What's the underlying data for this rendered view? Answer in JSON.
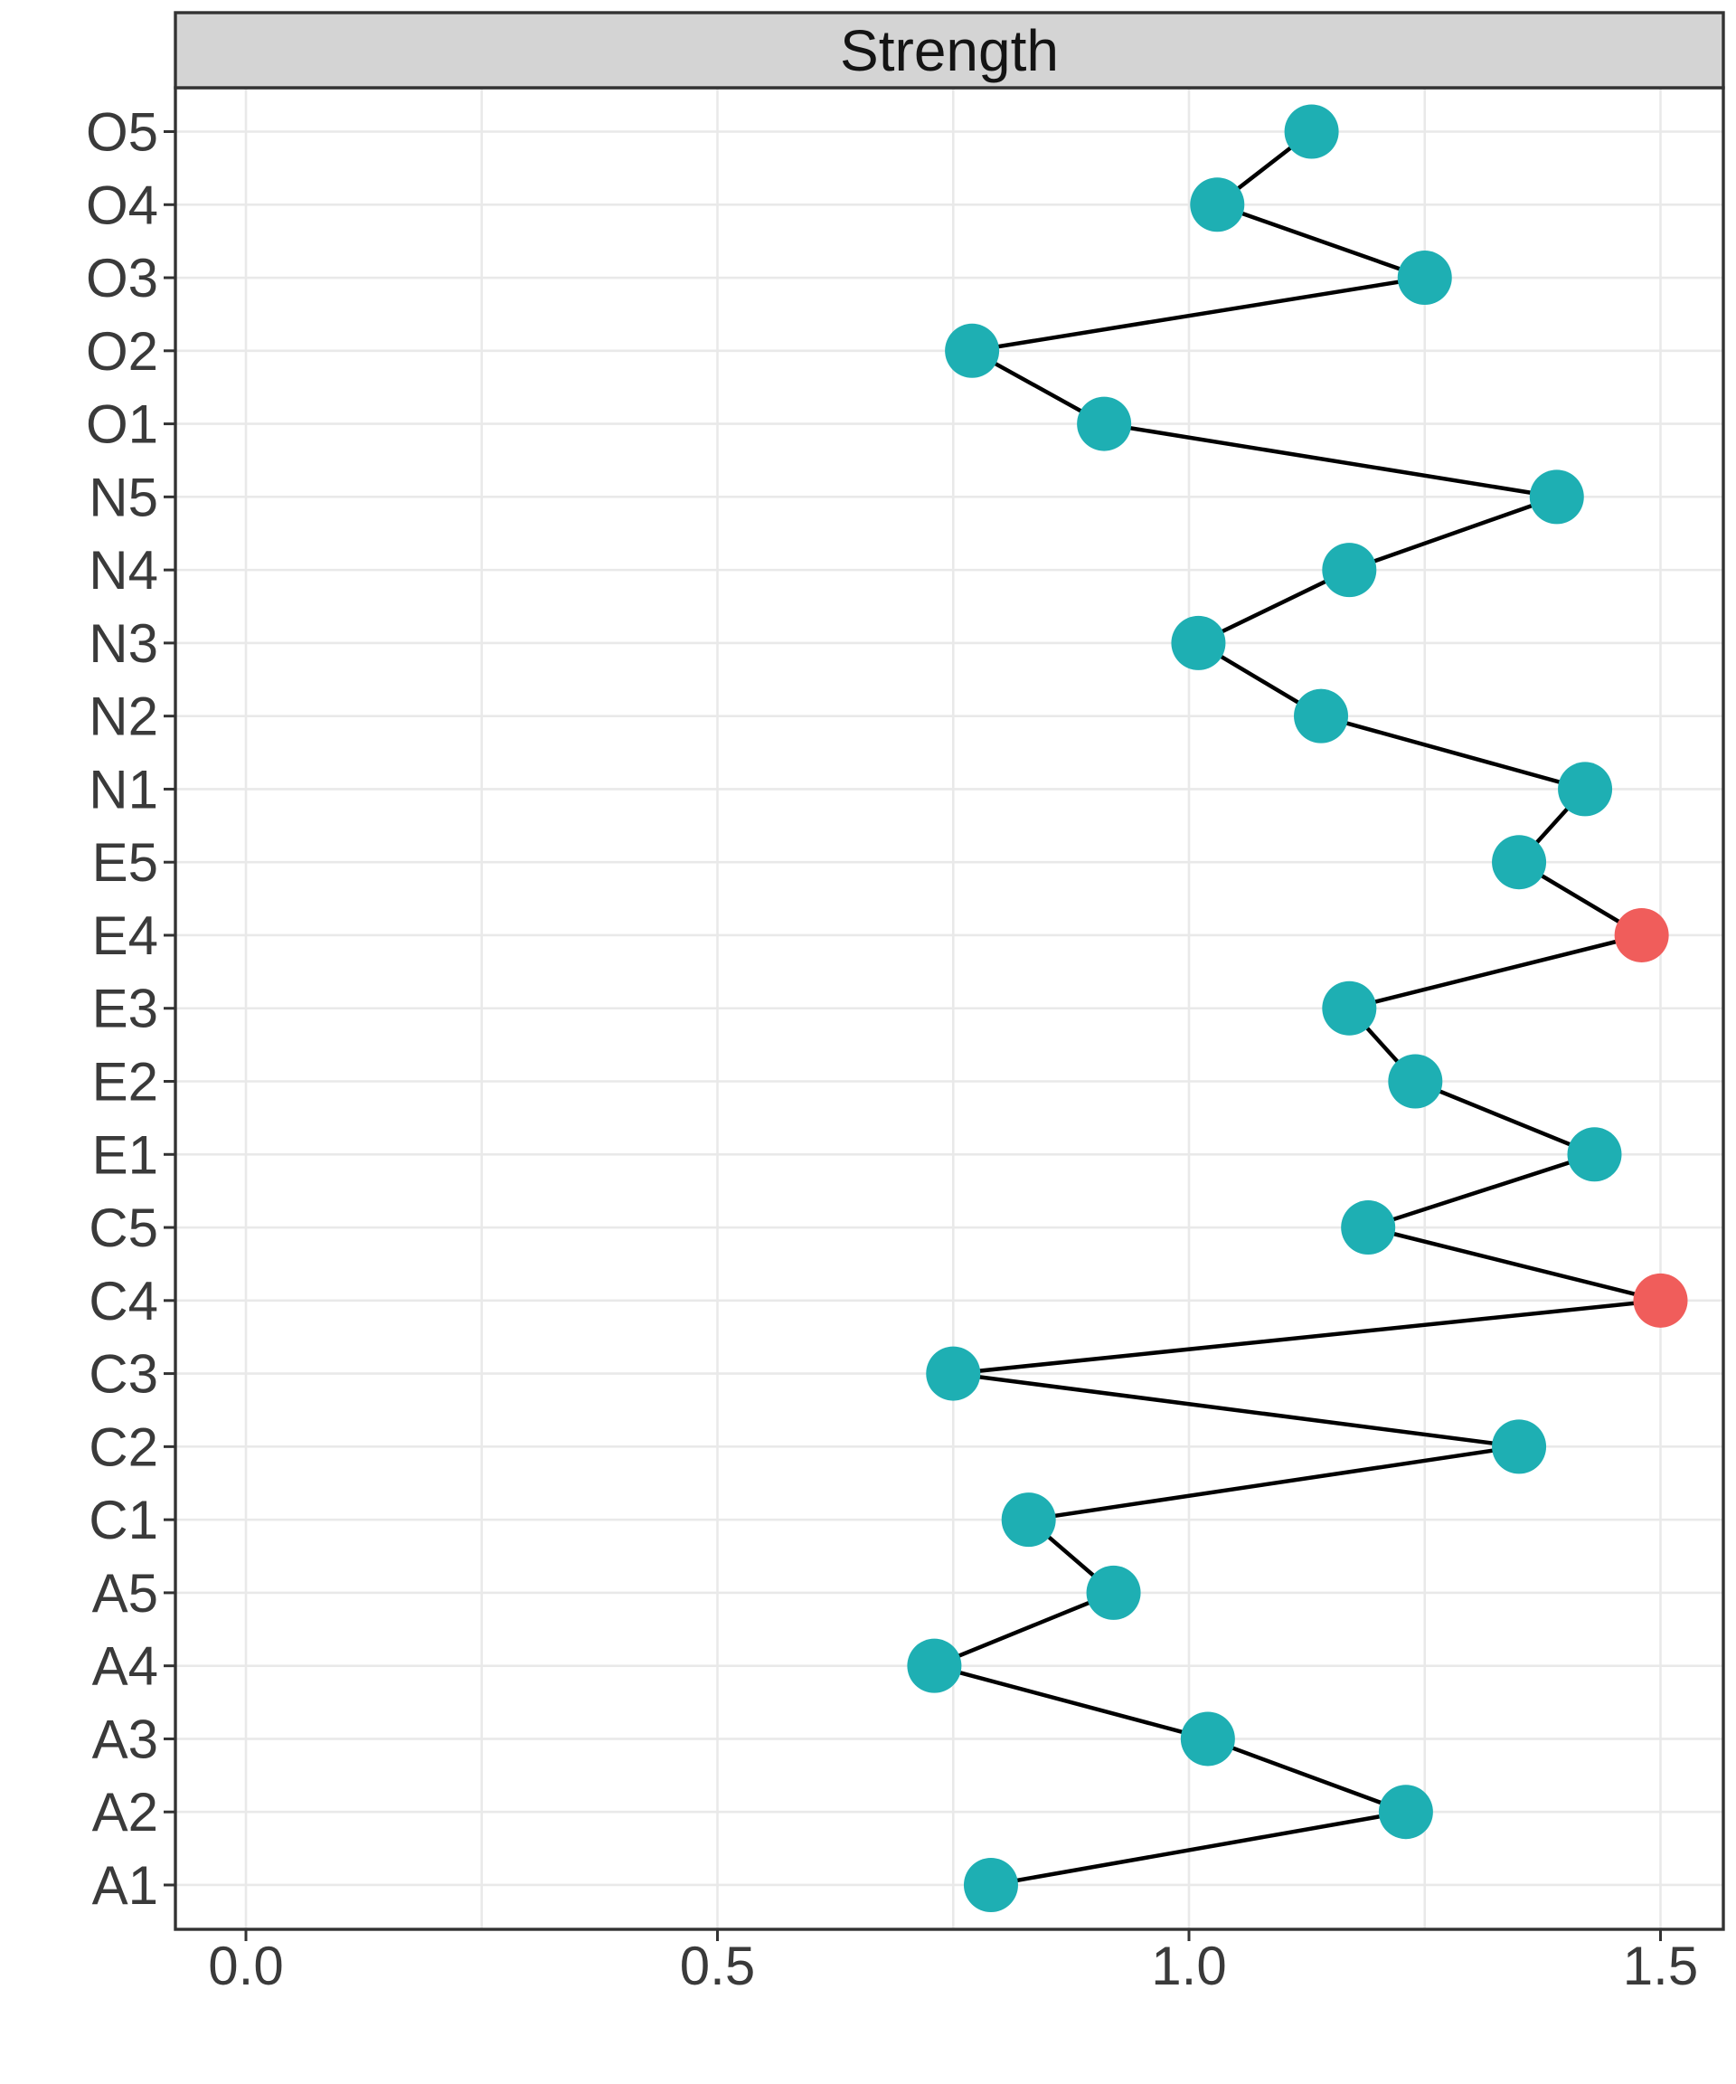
{
  "figure": {
    "kind": "faceted dot-line centrality plot",
    "background": "#ffffff"
  },
  "chart_data": {
    "type": "line",
    "title": "Strength",
    "xlabel": "",
    "ylabel": "",
    "legend": "none",
    "grid": true,
    "x_axis": {
      "tick_labels": [
        "0.0",
        "0.5",
        "1.0",
        "1.5"
      ],
      "tick_values": [
        0.0,
        0.5,
        1.0,
        1.5
      ],
      "minor_grid_values": [
        0.25,
        0.75,
        1.25
      ],
      "range": [
        -0.074,
        1.566
      ]
    },
    "y_axis": {
      "categories_top_to_bottom": [
        "O5",
        "O4",
        "O3",
        "O2",
        "O1",
        "N5",
        "N4",
        "N3",
        "N2",
        "N1",
        "E5",
        "E4",
        "E3",
        "E2",
        "E1",
        "C5",
        "C4",
        "C3",
        "C2",
        "C1",
        "A5",
        "A4",
        "A3",
        "A2",
        "A1"
      ]
    },
    "series": [
      {
        "name": "Strength",
        "points": [
          {
            "label": "O5",
            "value": 1.13,
            "highlight": false
          },
          {
            "label": "O4",
            "value": 1.03,
            "highlight": false
          },
          {
            "label": "O3",
            "value": 1.25,
            "highlight": false
          },
          {
            "label": "O2",
            "value": 0.77,
            "highlight": false
          },
          {
            "label": "O1",
            "value": 0.91,
            "highlight": false
          },
          {
            "label": "N5",
            "value": 1.39,
            "highlight": false
          },
          {
            "label": "N4",
            "value": 1.17,
            "highlight": false
          },
          {
            "label": "N3",
            "value": 1.01,
            "highlight": false
          },
          {
            "label": "N2",
            "value": 1.14,
            "highlight": false
          },
          {
            "label": "N1",
            "value": 1.42,
            "highlight": false
          },
          {
            "label": "E5",
            "value": 1.35,
            "highlight": false
          },
          {
            "label": "E4",
            "value": 1.48,
            "highlight": true
          },
          {
            "label": "E3",
            "value": 1.17,
            "highlight": false
          },
          {
            "label": "E2",
            "value": 1.24,
            "highlight": false
          },
          {
            "label": "E1",
            "value": 1.43,
            "highlight": false
          },
          {
            "label": "C5",
            "value": 1.19,
            "highlight": false
          },
          {
            "label": "C4",
            "value": 1.5,
            "highlight": true
          },
          {
            "label": "C3",
            "value": 0.75,
            "highlight": false
          },
          {
            "label": "C2",
            "value": 1.35,
            "highlight": false
          },
          {
            "label": "C1",
            "value": 0.83,
            "highlight": false
          },
          {
            "label": "A5",
            "value": 0.92,
            "highlight": false
          },
          {
            "label": "A4",
            "value": 0.73,
            "highlight": false
          },
          {
            "label": "A3",
            "value": 1.02,
            "highlight": false
          },
          {
            "label": "A2",
            "value": 1.23,
            "highlight": false
          },
          {
            "label": "A1",
            "value": 0.79,
            "highlight": false
          }
        ]
      }
    ],
    "highlighted_items": [
      "E4",
      "C4"
    ],
    "colors": {
      "point": "#1EAFB3",
      "point_highlight": "#F05D5B",
      "line": "#000000",
      "grid": "#E9E9E9",
      "panel_border": "#333333",
      "strip_fill": "#D4D4D4",
      "strip_border": "#333333",
      "axis_text": "#3A3A3A",
      "title_text": "#141414",
      "panel_background": "#FFFFFF"
    }
  }
}
